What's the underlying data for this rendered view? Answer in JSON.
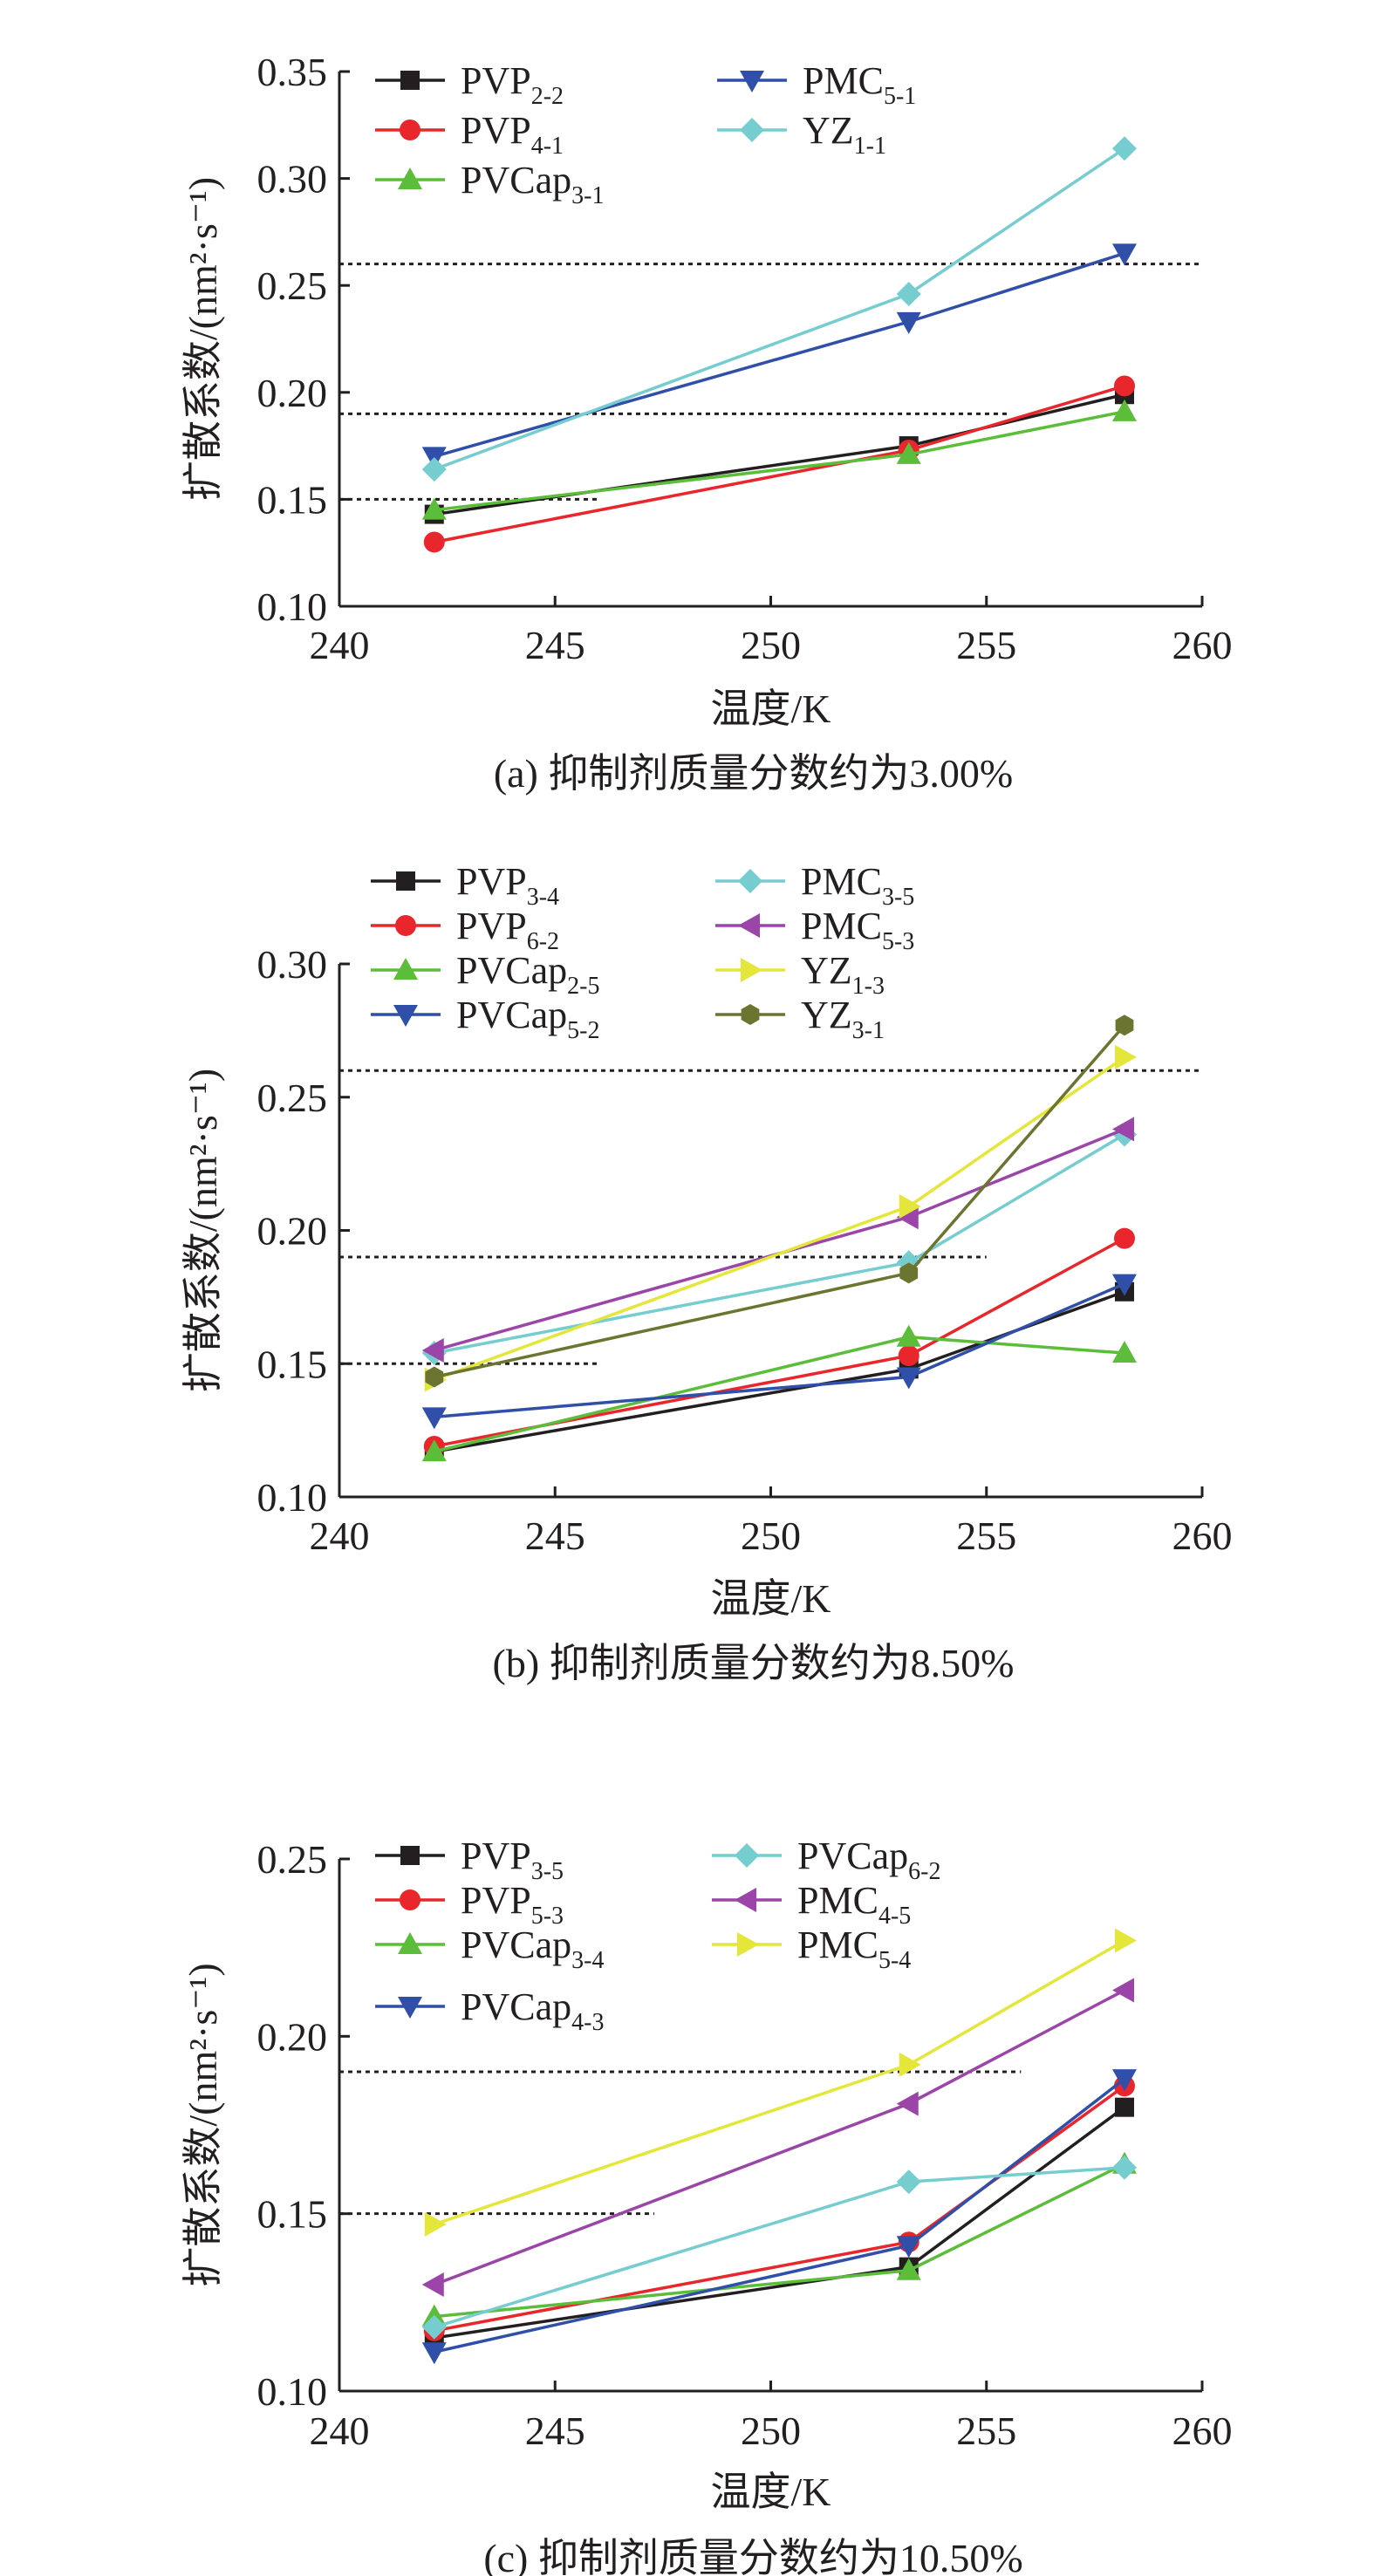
{
  "chart_data": [
    {
      "type": "line",
      "panel": "a",
      "caption": "(a) 抑制剂质量分数约为3.00%",
      "xlabel": "温度/K",
      "ylabel": "扩散系数/(nm²·s⁻¹)",
      "xlim": [
        240,
        260
      ],
      "ylim": [
        0.1,
        0.35
      ],
      "xticks": [
        "240",
        "245",
        "250",
        "255",
        "260"
      ],
      "yticks": [
        "0.10",
        "0.15",
        "0.20",
        "0.25",
        "0.30",
        "0.35"
      ],
      "x": [
        242.2,
        253.2,
        258.2
      ],
      "reference_lines": [
        {
          "y": 0.26,
          "x_end": 260
        },
        {
          "y": 0.19,
          "x_end": 255.5
        },
        {
          "y": 0.15,
          "x_end": 246
        }
      ],
      "legend_columns": 2,
      "legend_position": "top-left",
      "series": [
        {
          "name": "PVP",
          "sub": "2-2",
          "color": "#231f20",
          "marker": "square",
          "values": [
            0.143,
            0.175,
            0.199
          ]
        },
        {
          "name": "PVP",
          "sub": "4-1",
          "color": "#e8262b",
          "marker": "circle",
          "values": [
            0.13,
            0.173,
            0.203
          ]
        },
        {
          "name": "PVCap",
          "sub": "3-1",
          "color": "#5cbd3a",
          "marker": "triangle-up",
          "values": [
            0.145,
            0.171,
            0.191
          ]
        },
        {
          "name": "PMC",
          "sub": "5-1",
          "color": "#2f4fa8",
          "marker": "triangle-down",
          "values": [
            0.17,
            0.233,
            0.265
          ]
        },
        {
          "name": "YZ",
          "sub": "1-1",
          "color": "#76cdd0",
          "marker": "diamond",
          "values": [
            0.164,
            0.246,
            0.314
          ]
        }
      ]
    },
    {
      "type": "line",
      "panel": "b",
      "caption": "(b) 抑制剂质量分数约为8.50%",
      "xlabel": "温度/K",
      "ylabel": "扩散系数/(nm²·s⁻¹)",
      "xlim": [
        240,
        260
      ],
      "ylim": [
        0.1,
        0.3
      ],
      "xticks": [
        "240",
        "245",
        "250",
        "255",
        "260"
      ],
      "yticks": [
        "0.10",
        "0.15",
        "0.20",
        "0.25",
        "0.30"
      ],
      "x": [
        242.2,
        253.2,
        258.2
      ],
      "reference_lines": [
        {
          "y": 0.26,
          "x_end": 260
        },
        {
          "y": 0.19,
          "x_end": 255
        },
        {
          "y": 0.15,
          "x_end": 246
        }
      ],
      "legend_columns": 2,
      "legend_position": "top-left",
      "series": [
        {
          "name": "PVP",
          "sub": "3-4",
          "color": "#231f20",
          "marker": "square",
          "values": [
            0.117,
            0.148,
            0.177
          ]
        },
        {
          "name": "PVP",
          "sub": "6-2",
          "color": "#e8262b",
          "marker": "circle",
          "values": [
            0.119,
            0.153,
            0.197
          ]
        },
        {
          "name": "PVCap",
          "sub": "2-5",
          "color": "#5cbd3a",
          "marker": "triangle-up",
          "values": [
            0.117,
            0.16,
            0.154
          ]
        },
        {
          "name": "PVCap",
          "sub": "5-2",
          "color": "#2f4fa8",
          "marker": "triangle-down",
          "values": [
            0.13,
            0.145,
            0.18
          ]
        },
        {
          "name": "PMC",
          "sub": "3-5",
          "color": "#76cdd0",
          "marker": "diamond",
          "values": [
            0.154,
            0.188,
            0.236
          ]
        },
        {
          "name": "PMC",
          "sub": "5-3",
          "color": "#9b45a8",
          "marker": "triangle-left",
          "values": [
            0.155,
            0.205,
            0.238
          ]
        },
        {
          "name": "YZ",
          "sub": "1-3",
          "color": "#e4e63a",
          "marker": "triangle-right",
          "values": [
            0.144,
            0.209,
            0.265
          ]
        },
        {
          "name": "YZ",
          "sub": "3-1",
          "color": "#6b7530",
          "marker": "hexagon",
          "values": [
            0.145,
            0.184,
            0.277
          ]
        }
      ]
    },
    {
      "type": "line",
      "panel": "c",
      "caption": "(c) 抑制剂质量分数约为10.50%",
      "xlabel": "温度/K",
      "ylabel": "扩散系数/(nm²·s⁻¹)",
      "xlim": [
        240,
        260
      ],
      "ylim": [
        0.1,
        0.25
      ],
      "xticks": [
        "240",
        "245",
        "250",
        "255",
        "260"
      ],
      "yticks": [
        "0.10",
        "0.15",
        "0.20",
        "0.25"
      ],
      "x": [
        242.2,
        253.2,
        258.2
      ],
      "reference_lines": [
        {
          "y": 0.19,
          "x_end": 255.8
        },
        {
          "y": 0.15,
          "x_end": 247.3
        }
      ],
      "legend_columns": 2,
      "legend_position": "top-left",
      "series": [
        {
          "name": "PVP",
          "sub": "3-5",
          "color": "#231f20",
          "marker": "square",
          "values": [
            0.115,
            0.135,
            0.18
          ]
        },
        {
          "name": "PVP",
          "sub": "5-3",
          "color": "#e8262b",
          "marker": "circle",
          "values": [
            0.117,
            0.142,
            0.186
          ]
        },
        {
          "name": "PVCap",
          "sub": "3-4",
          "color": "#5cbd3a",
          "marker": "triangle-up",
          "values": [
            0.121,
            0.134,
            0.164
          ]
        },
        {
          "name": "PVCap",
          "sub": "4-3",
          "color": "#2f4fa8",
          "marker": "triangle-down",
          "values": [
            0.111,
            0.141,
            0.188
          ]
        },
        {
          "name": "PVCap",
          "sub": "6-2",
          "color": "#76cdd0",
          "marker": "diamond",
          "values": [
            0.118,
            0.159,
            0.163
          ]
        },
        {
          "name": "PMC",
          "sub": "4-5",
          "color": "#9b45a8",
          "marker": "triangle-left",
          "values": [
            0.13,
            0.181,
            0.213
          ]
        },
        {
          "name": "PMC",
          "sub": "5-4",
          "color": "#e4e63a",
          "marker": "triangle-right",
          "values": [
            0.147,
            0.192,
            0.227
          ]
        }
      ]
    }
  ]
}
